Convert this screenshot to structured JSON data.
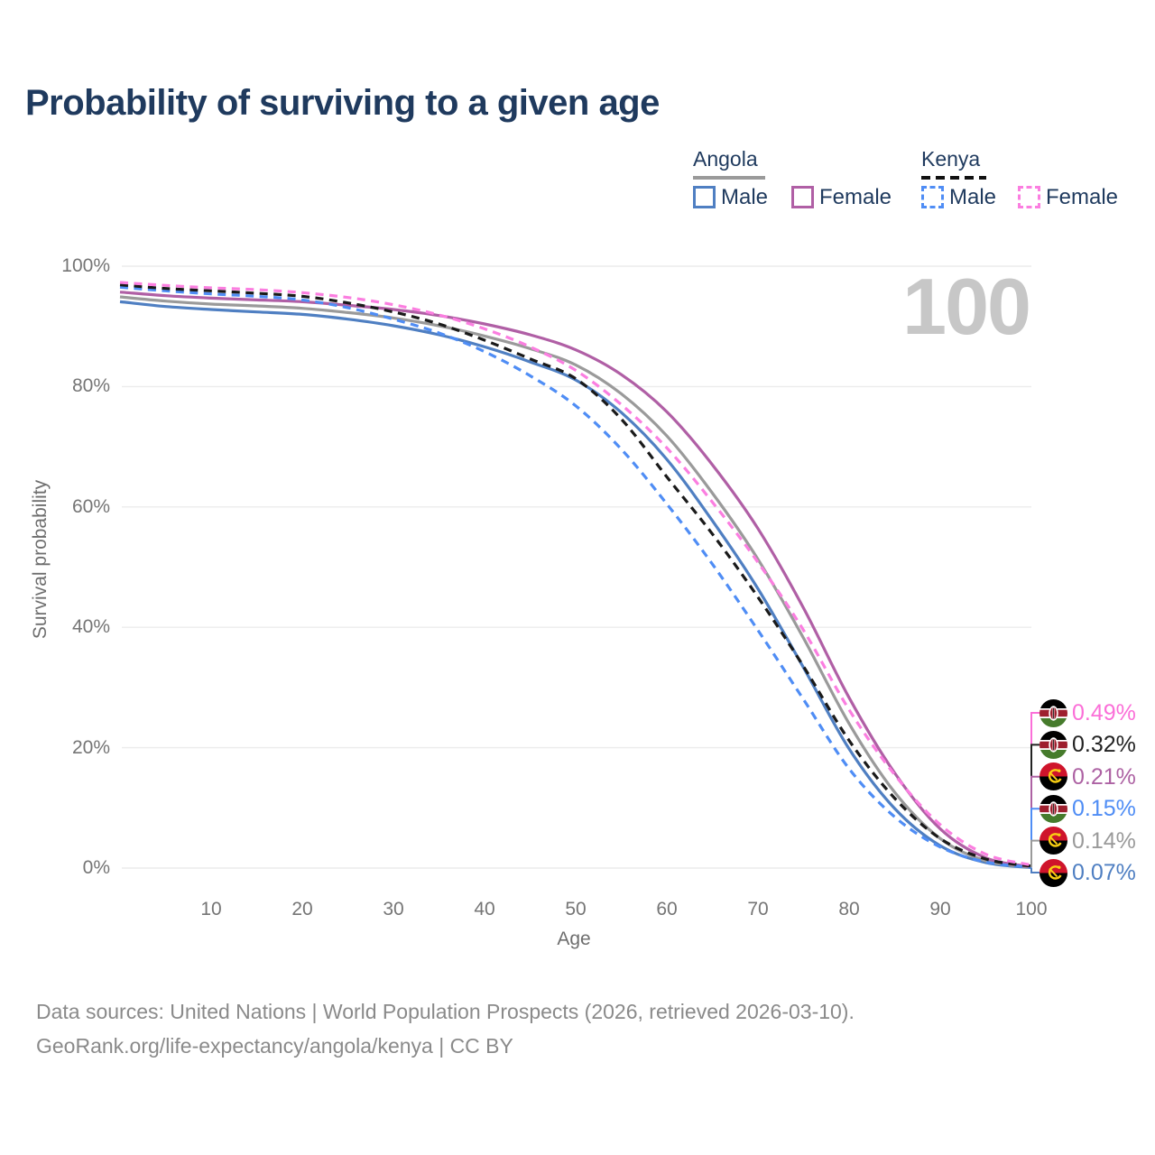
{
  "title": "Probability of surviving to a given age",
  "watermark": "100",
  "legend": {
    "groups": [
      {
        "label": "Angola",
        "line_style": "solid",
        "underline_color": "#9a9a9a",
        "items": [
          {
            "label": "Male",
            "color": "#4f7fc2"
          },
          {
            "label": "Female",
            "color": "#b05fa5"
          }
        ]
      },
      {
        "label": "Kenya",
        "line_style": "dashed",
        "underline_color": "#111111",
        "items": [
          {
            "label": "Male",
            "color": "#4f8df5"
          },
          {
            "label": "Female",
            "color": "#fb7ee0"
          }
        ]
      }
    ]
  },
  "chart_data": {
    "type": "line",
    "title": "Probability of surviving to a given age",
    "xlabel": "Age",
    "ylabel": "Survival probability",
    "xlim": [
      0,
      100
    ],
    "ylim": [
      0,
      100
    ],
    "grid": true,
    "xticks": [
      {
        "value": 10,
        "label": "10"
      },
      {
        "value": 20,
        "label": "20"
      },
      {
        "value": 30,
        "label": "30"
      },
      {
        "value": 40,
        "label": "40"
      },
      {
        "value": 50,
        "label": "50"
      },
      {
        "value": 60,
        "label": "60"
      },
      {
        "value": 70,
        "label": "70"
      },
      {
        "value": 80,
        "label": "80"
      },
      {
        "value": 90,
        "label": "90"
      },
      {
        "value": 100,
        "label": "100"
      }
    ],
    "yticks": [
      {
        "value": 0,
        "label": "0%"
      },
      {
        "value": 20,
        "label": "20%"
      },
      {
        "value": 40,
        "label": "40%"
      },
      {
        "value": 60,
        "label": "60%"
      },
      {
        "value": 80,
        "label": "80%"
      },
      {
        "value": 100,
        "label": "100%"
      }
    ],
    "x": [
      0,
      5,
      10,
      15,
      20,
      25,
      30,
      35,
      40,
      45,
      50,
      55,
      60,
      65,
      70,
      75,
      80,
      85,
      90,
      95,
      100
    ],
    "series": [
      {
        "name": "Angola Male",
        "country": "angola",
        "sex": "male",
        "color": "#4f7fc2",
        "dashed": false,
        "values": [
          94.1,
          93.3,
          92.8,
          92.4,
          92.0,
          91.2,
          90.1,
          88.6,
          86.6,
          84.1,
          81.1,
          75.7,
          67.9,
          57.7,
          46.4,
          33.3,
          19.8,
          9.9,
          3.7,
          0.9,
          0.07
        ]
      },
      {
        "name": "Angola Both sexes",
        "country": "angola",
        "sex": "both",
        "color": "#9a9a9a",
        "dashed": false,
        "values": [
          94.9,
          94.2,
          93.7,
          93.4,
          93.0,
          92.3,
          91.4,
          90.1,
          88.4,
          86.3,
          83.6,
          78.8,
          71.8,
          62.3,
          51.3,
          38.2,
          24.0,
          12.6,
          4.9,
          1.2,
          0.14
        ]
      },
      {
        "name": "Angola Female",
        "country": "angola",
        "sex": "female",
        "color": "#b05fa5",
        "dashed": false,
        "values": [
          95.7,
          95.1,
          94.7,
          94.4,
          94.1,
          93.5,
          92.8,
          91.8,
          90.4,
          88.6,
          86.1,
          82.0,
          75.8,
          67.0,
          56.4,
          43.2,
          28.3,
          15.8,
          6.5,
          1.7,
          0.21
        ]
      },
      {
        "name": "Kenya Male",
        "country": "kenya",
        "sex": "male",
        "color": "#4f8df5",
        "dashed": true,
        "values": [
          96.5,
          95.9,
          95.4,
          95.0,
          94.4,
          93.1,
          91.2,
          88.9,
          85.8,
          81.8,
          76.8,
          69.6,
          60.5,
          50.5,
          39.5,
          28.0,
          16.5,
          8.5,
          3.5,
          1.0,
          0.15
        ]
      },
      {
        "name": "Kenya Both sexes",
        "country": "kenya",
        "sex": "both",
        "color": "#1a1a1a",
        "dashed": true,
        "values": [
          96.9,
          96.3,
          95.9,
          95.5,
          95.0,
          93.9,
          92.4,
          90.4,
          87.7,
          84.6,
          81.3,
          74.6,
          65.0,
          55.5,
          45.0,
          33.5,
          21.2,
          11.6,
          4.9,
          1.5,
          0.32
        ]
      },
      {
        "name": "Kenya Female",
        "country": "kenya",
        "sex": "female",
        "color": "#fb7ee0",
        "dashed": true,
        "values": [
          97.3,
          96.8,
          96.4,
          96.1,
          95.6,
          94.8,
          93.6,
          91.9,
          89.6,
          86.6,
          82.7,
          77.0,
          69.8,
          60.8,
          50.8,
          39.5,
          26.3,
          15.5,
          7.2,
          2.3,
          0.49
        ]
      }
    ],
    "end_labels": [
      {
        "text": "0.49%",
        "value": 0.49,
        "country": "kenya",
        "color": "#fb6fd8"
      },
      {
        "text": "0.32%",
        "value": 0.32,
        "country": "kenya",
        "color": "#222222"
      },
      {
        "text": "0.21%",
        "value": 0.21,
        "country": "angola",
        "color": "#ad62a3"
      },
      {
        "text": "0.15%",
        "value": 0.15,
        "country": "kenya",
        "color": "#4f8df5"
      },
      {
        "text": "0.14%",
        "value": 0.14,
        "country": "angola",
        "color": "#9a9a9a"
      },
      {
        "text": "0.07%",
        "value": 0.07,
        "country": "angola",
        "color": "#4f7fc2"
      }
    ]
  },
  "footer": {
    "line1": "Data sources: United Nations | World Population Prospects (2026, retrieved 2026-03-10).",
    "line2": "GeoRank.org/life-expectancy/angola/kenya | CC BY"
  }
}
